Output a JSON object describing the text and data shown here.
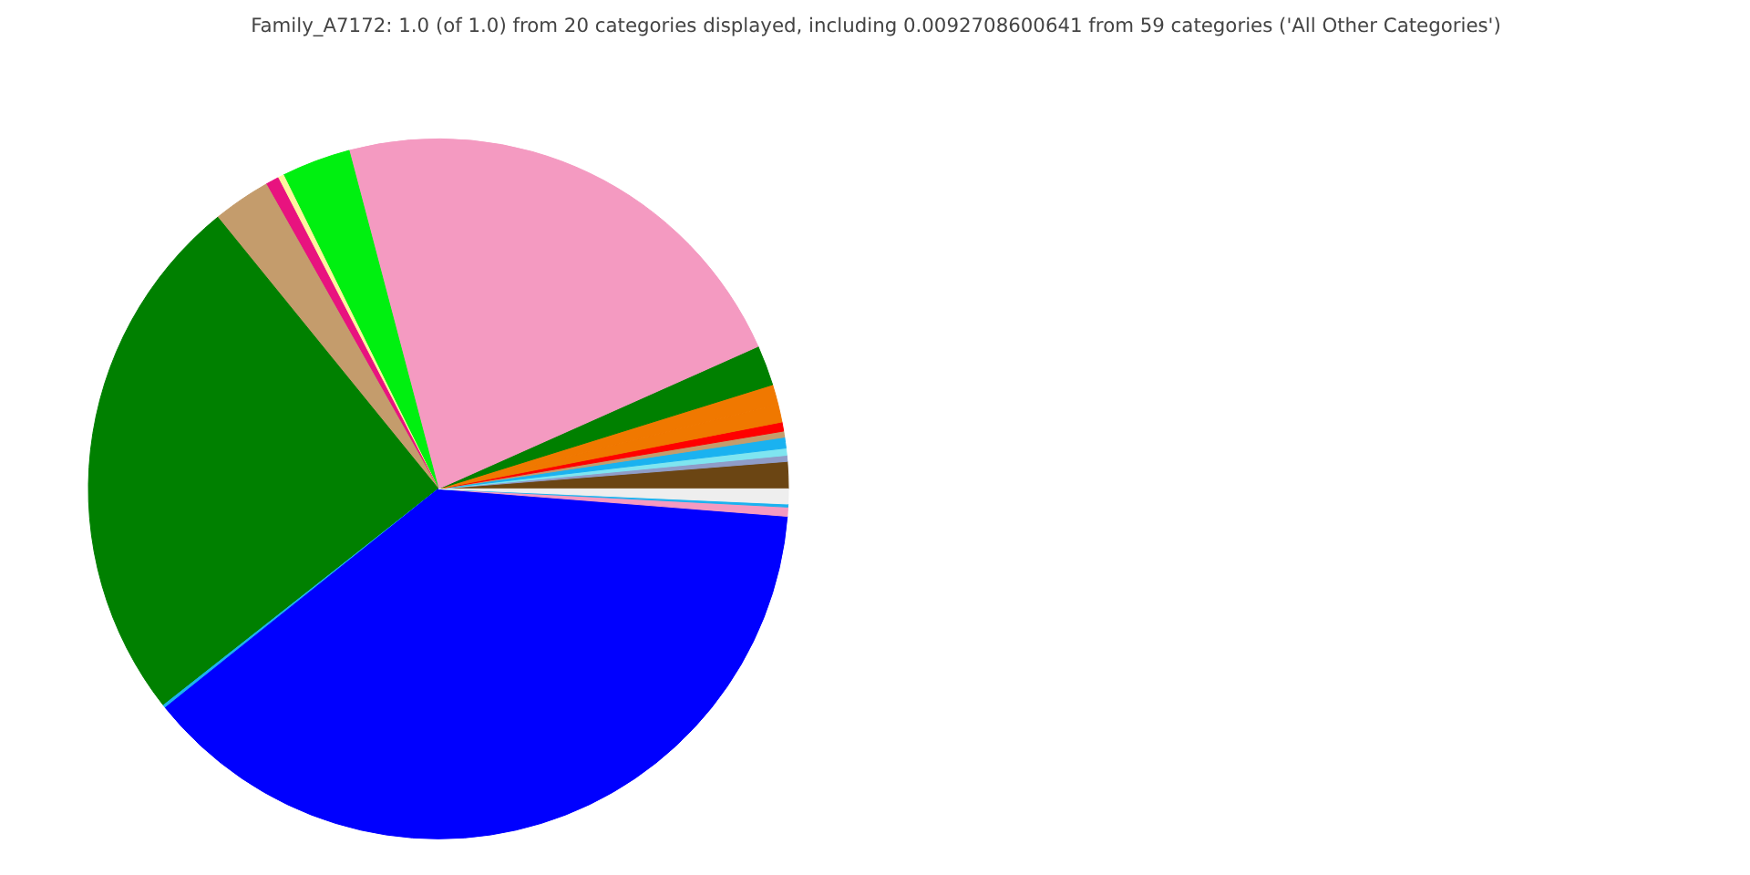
{
  "chart_data": {
    "type": "pie",
    "title": "Family_A7172: 1.0 (of 1.0) from 20 categories displayed, including 0.0092708600641 from 59 categories ('All Other Categories')",
    "categories": [
      null,
      null,
      null,
      null,
      null,
      null,
      null,
      null,
      null,
      null,
      null,
      null,
      null,
      null,
      null,
      null,
      null,
      null,
      null,
      null
    ],
    "values": [
      1.25,
      0.28,
      0.33,
      0.5,
      0.28,
      0.42,
      0.83,
      0.92,
      1.86,
      22.44,
      3.19,
      0.28,
      0.61,
      2.67,
      24.75,
      0.14,
      38.0,
      0.42,
      0.14,
      0.69
    ],
    "colors": [
      "#6b4513",
      "#8f9cc8",
      "#7fe5f0",
      "#1ab2f0",
      "#c49c6c",
      "#ff0000",
      "#f07800",
      "#f07800",
      "#008000",
      "#f49ac1",
      "#00f010",
      "#fff5a0",
      "#e8137f",
      "#c49c6c",
      "#008000",
      "#1ab2f0",
      "#0000ff",
      "#f49ac1",
      "#1ab2f0",
      "#eeeeee"
    ],
    "legend": false
  }
}
